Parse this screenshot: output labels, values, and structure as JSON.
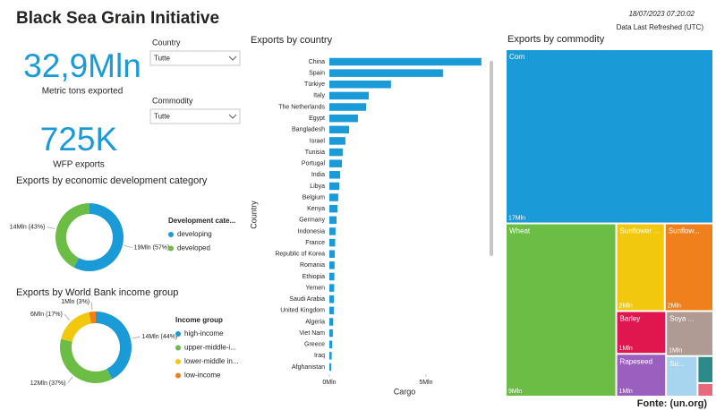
{
  "title": "Black Sea Grain Initiative",
  "refresh": {
    "timestamp": "18/07/2023 07:20:02",
    "label": "Data Last Refreshed (UTC)"
  },
  "kpis": [
    {
      "value": "32,9Mln",
      "label": "Metric tons exported"
    },
    {
      "value": "725K",
      "label": "WFP exports"
    }
  ],
  "filters": [
    {
      "label": "Country",
      "value": "Tutte"
    },
    {
      "label": "Commodity",
      "value": "Tutte"
    }
  ],
  "source": "Fonte: (un.org)",
  "chart_data": [
    {
      "type": "donut",
      "title": "Exports by economic development category",
      "legend_title": "Development cate...",
      "categories": [
        "developing",
        "developed"
      ],
      "values": [
        19,
        14
      ],
      "value_labels": [
        "19Mln (57%)",
        "14Mln (43%)"
      ],
      "colors": [
        "#1a9ad6",
        "#6cbd45"
      ]
    },
    {
      "type": "donut",
      "title": "Exports by World Bank income group",
      "legend_title": "Income group",
      "categories": [
        "high-income",
        "upper-middle-i...",
        "lower-middle in...",
        "low-income"
      ],
      "values": [
        14,
        12,
        6,
        1
      ],
      "value_labels": [
        "14Mln (44%)",
        "12Mln (37%)",
        "6Mln (17%)",
        "1Mln (3%)"
      ],
      "colors": [
        "#1a9ad6",
        "#6cbd45",
        "#f2c80f",
        "#f0801c"
      ]
    },
    {
      "type": "bar",
      "orientation": "horizontal",
      "title": "Exports by country",
      "x_label": "Cargo",
      "y_label": "Country",
      "color": "#1a9ad6",
      "categories": [
        "China",
        "Spain",
        "Türkiye",
        "Italy",
        "The Netherlands",
        "Egypt",
        "Bangladesh",
        "Israel",
        "Tunisia",
        "Portugal",
        "India",
        "Libya",
        "Belgium",
        "Kenya",
        "Germany",
        "Indonesia",
        "France",
        "Republic of Korea",
        "Romania",
        "Ethiopia",
        "Yemen",
        "Saudi Arabia",
        "United Kingdom",
        "Algeria",
        "Viet Nam",
        "Greece",
        "Iraq",
        "Afghanistan"
      ],
      "values": [
        7.87,
        5.88,
        3.19,
        2.04,
        1.9,
        1.48,
        1.02,
        0.83,
        0.69,
        0.65,
        0.56,
        0.51,
        0.46,
        0.42,
        0.37,
        0.32,
        0.3,
        0.28,
        0.27,
        0.26,
        0.25,
        0.24,
        0.23,
        0.2,
        0.18,
        0.15,
        0.12,
        0.1
      ],
      "xlim": [
        0,
        8.2
      ],
      "xticks": [
        {
          "value": 0,
          "label": "0Mln"
        },
        {
          "value": 5,
          "label": "5Mln"
        }
      ]
    },
    {
      "type": "treemap",
      "title": "Exports by commodity",
      "categories": [
        "Corn",
        "Wheat",
        "Sunflower ...",
        "Sunflow...",
        "Barley",
        "Rapeseed",
        "Soya ...",
        "Su...",
        null,
        null
      ],
      "values": [
        17,
        9,
        2,
        2,
        1,
        1,
        1,
        0.6,
        0.2,
        0.1
      ],
      "value_labels": [
        "17Mln",
        "9Mln",
        "2Mln",
        "2Mln",
        "1Mln",
        "1Mln",
        "1Mln",
        null,
        null,
        null
      ],
      "colors": [
        "#1a9ad6",
        "#6cbd45",
        "#f2c80f",
        "#f0801c",
        "#e0174f",
        "#9b5fc0",
        "#b09b94",
        "#a7d4ef",
        "#2d8a8a",
        "#e86a7a"
      ]
    }
  ]
}
